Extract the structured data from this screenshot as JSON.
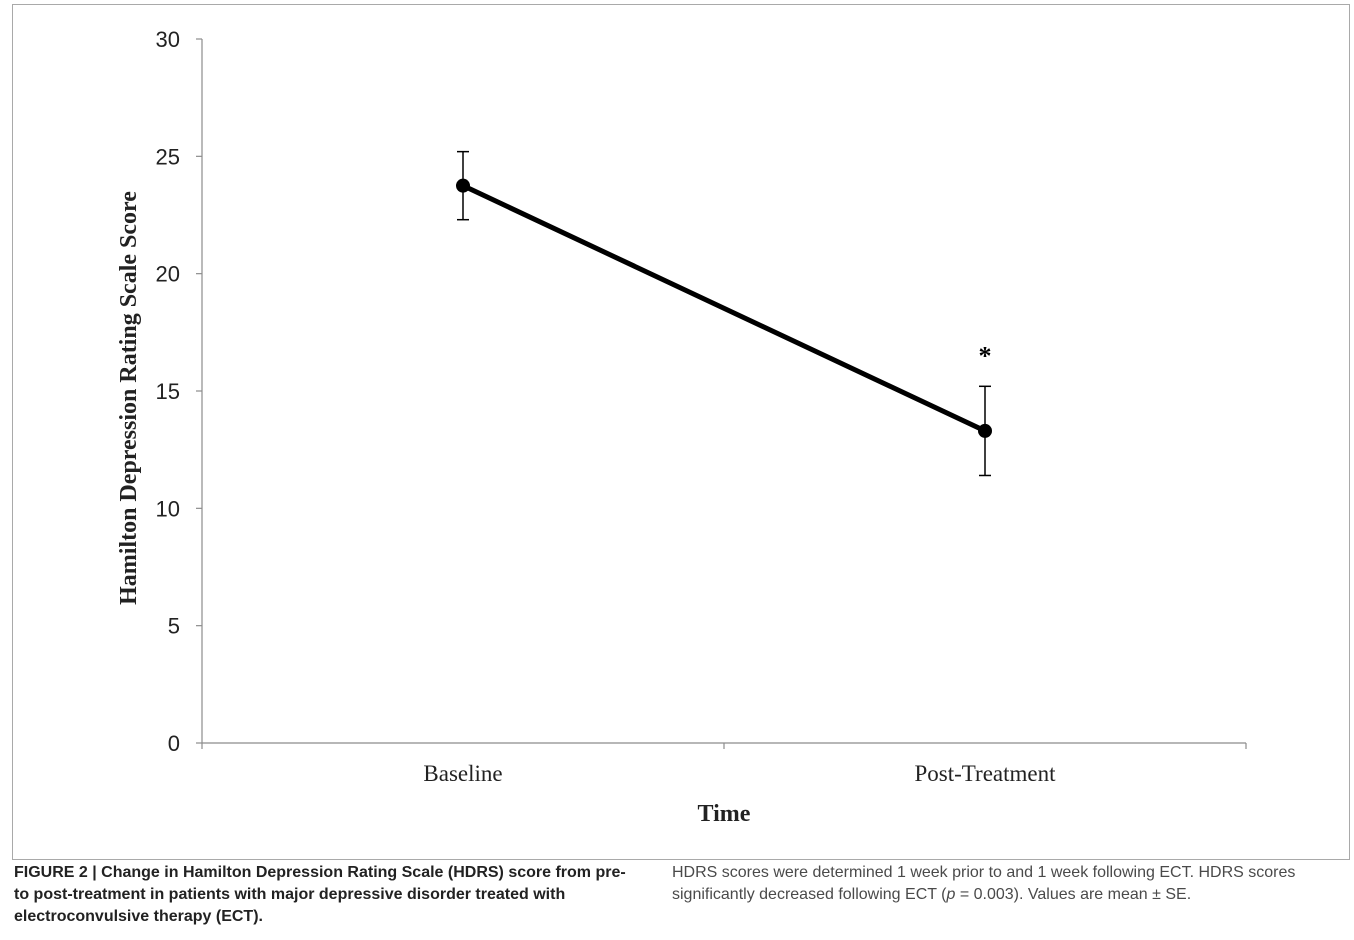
{
  "chart_data": {
    "type": "line",
    "categories": [
      "Baseline",
      "Post-Treatment"
    ],
    "series": [
      {
        "values": [
          23.75,
          13.3
        ],
        "error": [
          1.45,
          1.9
        ]
      }
    ],
    "annotations": [
      {
        "category": "Post-Treatment",
        "text": "*"
      }
    ],
    "xlabel": "Time",
    "ylabel": "Hamilton Depression Rating Scale Score",
    "ylim": [
      0,
      30
    ],
    "yticks": [
      0,
      5,
      10,
      15,
      20,
      25,
      30
    ],
    "grid": false,
    "legend": "none"
  },
  "caption": {
    "figure_label": "FIGURE 2 | Change in Hamilton Depression Rating Scale (HDRS) score from pre- to post-treatment in patients with major depressive disorder treated with electroconvulsive therapy (ECT).",
    "body_part1": "HDRS scores were determined 1 week prior to and 1 week following ECT. HDRS scores significantly decreased following ECT (",
    "p_symbol": "p",
    "body_part2": " = 0.003). Values are mean ± SE."
  }
}
